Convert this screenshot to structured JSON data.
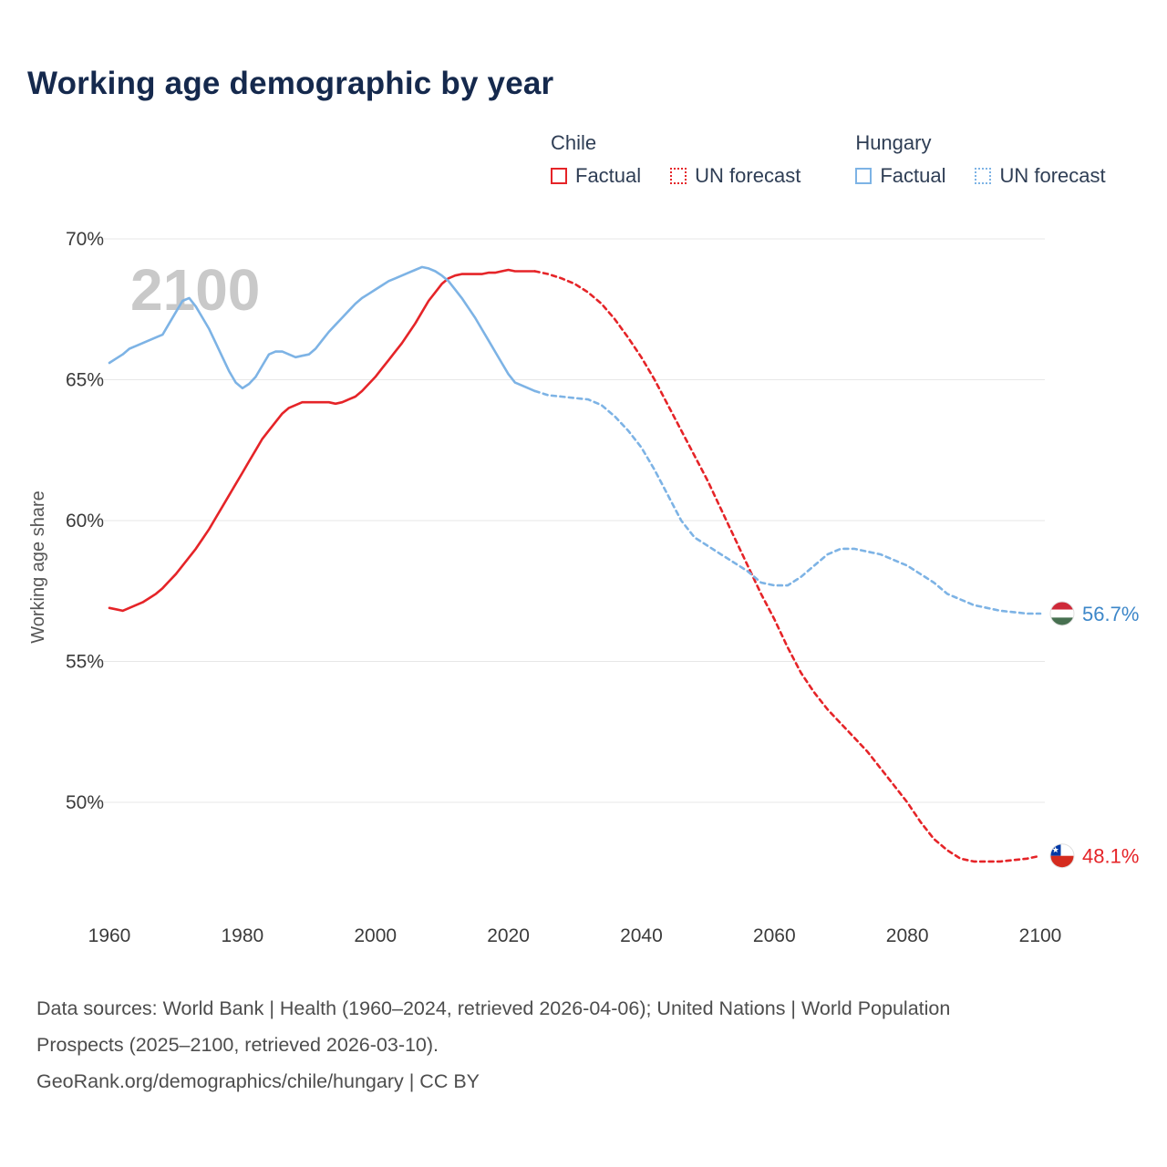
{
  "title": "Working age demographic by year",
  "watermark": "2100",
  "legend": {
    "groups": [
      {
        "country": "Chile",
        "color_key": "chile",
        "items": [
          {
            "label": "Factual",
            "style": "solid"
          },
          {
            "label": "UN forecast",
            "style": "dotted"
          }
        ]
      },
      {
        "country": "Hungary",
        "color_key": "hungary",
        "items": [
          {
            "label": "Factual",
            "style": "solid"
          },
          {
            "label": "UN forecast",
            "style": "dotted"
          }
        ]
      }
    ]
  },
  "colors": {
    "chile": "#e52428",
    "hungary": "#7db3e5",
    "chile_label": "#e52428",
    "hungary_label": "#3d87c9",
    "title": "#15294d",
    "grid": "#e7e7e7",
    "axis_text": "#3b3b3b",
    "muted_text": "#555555",
    "watermark": "#c9c9c9"
  },
  "end_labels": [
    {
      "flag": "hungary",
      "value": "56.7%",
      "value_num": 56.7,
      "color": "#3d87c9"
    },
    {
      "flag": "chile",
      "value": "48.1%",
      "value_num": 48.1,
      "color": "#e52428"
    }
  ],
  "footer": {
    "line1": "Data sources: World Bank | Health (1960–2024, retrieved 2026-04-06); United Nations | World Population Prospects (2025–2100, retrieved 2026-03-10).",
    "line2": "GeoRank.org/demographics/chile/hungary | CC BY"
  },
  "chart_data": {
    "type": "line",
    "title": "Working age demographic by year",
    "xlabel": "",
    "ylabel": "Working age share",
    "x_range": [
      1960,
      2100
    ],
    "y_range_display": [
      47,
      70.8
    ],
    "yticks": [
      50,
      55,
      60,
      65,
      70
    ],
    "xticks": [
      1960,
      1980,
      2000,
      2020,
      2040,
      2060,
      2080,
      2100
    ],
    "grid": "horizontal",
    "legend_position": "top-right",
    "series": [
      {
        "id": "chile-factual",
        "name": "Chile Factual",
        "color": "#e52428",
        "dashed": false,
        "points": [
          [
            1960,
            56.9
          ],
          [
            1961,
            56.85
          ],
          [
            1962,
            56.8
          ],
          [
            1963,
            56.9
          ],
          [
            1964,
            57.0
          ],
          [
            1965,
            57.1
          ],
          [
            1966,
            57.25
          ],
          [
            1967,
            57.4
          ],
          [
            1968,
            57.6
          ],
          [
            1969,
            57.85
          ],
          [
            1970,
            58.1
          ],
          [
            1971,
            58.4
          ],
          [
            1972,
            58.7
          ],
          [
            1973,
            59.0
          ],
          [
            1974,
            59.35
          ],
          [
            1975,
            59.7
          ],
          [
            1976,
            60.1
          ],
          [
            1977,
            60.5
          ],
          [
            1978,
            60.9
          ],
          [
            1979,
            61.3
          ],
          [
            1980,
            61.7
          ],
          [
            1981,
            62.1
          ],
          [
            1982,
            62.5
          ],
          [
            1983,
            62.9
          ],
          [
            1984,
            63.2
          ],
          [
            1985,
            63.5
          ],
          [
            1986,
            63.8
          ],
          [
            1987,
            64.0
          ],
          [
            1988,
            64.1
          ],
          [
            1989,
            64.2
          ],
          [
            1990,
            64.2
          ],
          [
            1991,
            64.2
          ],
          [
            1992,
            64.2
          ],
          [
            1993,
            64.2
          ],
          [
            1994,
            64.15
          ],
          [
            1995,
            64.2
          ],
          [
            1996,
            64.3
          ],
          [
            1997,
            64.4
          ],
          [
            1998,
            64.6
          ],
          [
            1999,
            64.85
          ],
          [
            2000,
            65.1
          ],
          [
            2001,
            65.4
          ],
          [
            2002,
            65.7
          ],
          [
            2003,
            66.0
          ],
          [
            2004,
            66.3
          ],
          [
            2005,
            66.65
          ],
          [
            2006,
            67.0
          ],
          [
            2007,
            67.4
          ],
          [
            2008,
            67.8
          ],
          [
            2009,
            68.1
          ],
          [
            2010,
            68.4
          ],
          [
            2011,
            68.6
          ],
          [
            2012,
            68.7
          ],
          [
            2013,
            68.75
          ],
          [
            2014,
            68.75
          ],
          [
            2015,
            68.75
          ],
          [
            2016,
            68.75
          ],
          [
            2017,
            68.8
          ],
          [
            2018,
            68.8
          ],
          [
            2019,
            68.85
          ],
          [
            2020,
            68.9
          ],
          [
            2021,
            68.85
          ],
          [
            2022,
            68.85
          ],
          [
            2023,
            68.85
          ],
          [
            2024,
            68.85
          ]
        ]
      },
      {
        "id": "chile-forecast",
        "name": "Chile UN forecast",
        "color": "#e52428",
        "dashed": true,
        "points": [
          [
            2024,
            68.85
          ],
          [
            2026,
            68.75
          ],
          [
            2028,
            68.6
          ],
          [
            2030,
            68.4
          ],
          [
            2032,
            68.1
          ],
          [
            2034,
            67.7
          ],
          [
            2036,
            67.15
          ],
          [
            2038,
            66.5
          ],
          [
            2040,
            65.8
          ],
          [
            2042,
            65.0
          ],
          [
            2044,
            64.1
          ],
          [
            2046,
            63.2
          ],
          [
            2048,
            62.3
          ],
          [
            2050,
            61.4
          ],
          [
            2052,
            60.4
          ],
          [
            2054,
            59.4
          ],
          [
            2056,
            58.4
          ],
          [
            2058,
            57.4
          ],
          [
            2060,
            56.5
          ],
          [
            2062,
            55.5
          ],
          [
            2064,
            54.6
          ],
          [
            2066,
            53.9
          ],
          [
            2068,
            53.3
          ],
          [
            2070,
            52.8
          ],
          [
            2072,
            52.3
          ],
          [
            2074,
            51.8
          ],
          [
            2076,
            51.2
          ],
          [
            2078,
            50.6
          ],
          [
            2080,
            50.0
          ],
          [
            2082,
            49.3
          ],
          [
            2084,
            48.7
          ],
          [
            2086,
            48.3
          ],
          [
            2088,
            48.0
          ],
          [
            2090,
            47.9
          ],
          [
            2092,
            47.9
          ],
          [
            2094,
            47.9
          ],
          [
            2096,
            47.95
          ],
          [
            2098,
            48.0
          ],
          [
            2100,
            48.1
          ]
        ]
      },
      {
        "id": "hungary-factual",
        "name": "Hungary Factual",
        "color": "#7db3e5",
        "dashed": false,
        "points": [
          [
            1960,
            65.6
          ],
          [
            1961,
            65.75
          ],
          [
            1962,
            65.9
          ],
          [
            1963,
            66.1
          ],
          [
            1964,
            66.2
          ],
          [
            1965,
            66.3
          ],
          [
            1966,
            66.4
          ],
          [
            1967,
            66.5
          ],
          [
            1968,
            66.6
          ],
          [
            1969,
            67.0
          ],
          [
            1970,
            67.4
          ],
          [
            1971,
            67.8
          ],
          [
            1972,
            67.9
          ],
          [
            1973,
            67.6
          ],
          [
            1974,
            67.2
          ],
          [
            1975,
            66.8
          ],
          [
            1976,
            66.3
          ],
          [
            1977,
            65.8
          ],
          [
            1978,
            65.3
          ],
          [
            1979,
            64.9
          ],
          [
            1980,
            64.7
          ],
          [
            1981,
            64.85
          ],
          [
            1982,
            65.1
          ],
          [
            1983,
            65.5
          ],
          [
            1984,
            65.9
          ],
          [
            1985,
            66.0
          ],
          [
            1986,
            66.0
          ],
          [
            1987,
            65.9
          ],
          [
            1988,
            65.8
          ],
          [
            1989,
            65.85
          ],
          [
            1990,
            65.9
          ],
          [
            1991,
            66.1
          ],
          [
            1992,
            66.4
          ],
          [
            1993,
            66.7
          ],
          [
            1994,
            66.95
          ],
          [
            1995,
            67.2
          ],
          [
            1996,
            67.45
          ],
          [
            1997,
            67.7
          ],
          [
            1998,
            67.9
          ],
          [
            1999,
            68.05
          ],
          [
            2000,
            68.2
          ],
          [
            2001,
            68.35
          ],
          [
            2002,
            68.5
          ],
          [
            2003,
            68.6
          ],
          [
            2004,
            68.7
          ],
          [
            2005,
            68.8
          ],
          [
            2006,
            68.9
          ],
          [
            2007,
            69.0
          ],
          [
            2008,
            68.95
          ],
          [
            2009,
            68.85
          ],
          [
            2010,
            68.7
          ],
          [
            2011,
            68.5
          ],
          [
            2012,
            68.2
          ],
          [
            2013,
            67.9
          ],
          [
            2014,
            67.55
          ],
          [
            2015,
            67.2
          ],
          [
            2016,
            66.8
          ],
          [
            2017,
            66.4
          ],
          [
            2018,
            66.0
          ],
          [
            2019,
            65.6
          ],
          [
            2020,
            65.2
          ],
          [
            2021,
            64.9
          ],
          [
            2022,
            64.8
          ],
          [
            2023,
            64.7
          ],
          [
            2024,
            64.6
          ]
        ]
      },
      {
        "id": "hungary-forecast",
        "name": "Hungary UN forecast",
        "color": "#7db3e5",
        "dashed": true,
        "points": [
          [
            2024,
            64.6
          ],
          [
            2026,
            64.45
          ],
          [
            2028,
            64.4
          ],
          [
            2030,
            64.35
          ],
          [
            2032,
            64.3
          ],
          [
            2034,
            64.1
          ],
          [
            2036,
            63.7
          ],
          [
            2038,
            63.2
          ],
          [
            2040,
            62.6
          ],
          [
            2042,
            61.8
          ],
          [
            2044,
            60.9
          ],
          [
            2046,
            60.0
          ],
          [
            2048,
            59.4
          ],
          [
            2050,
            59.1
          ],
          [
            2052,
            58.8
          ],
          [
            2054,
            58.5
          ],
          [
            2056,
            58.2
          ],
          [
            2058,
            57.8
          ],
          [
            2060,
            57.7
          ],
          [
            2062,
            57.7
          ],
          [
            2064,
            58.0
          ],
          [
            2066,
            58.4
          ],
          [
            2068,
            58.8
          ],
          [
            2070,
            59.0
          ],
          [
            2072,
            59.0
          ],
          [
            2074,
            58.9
          ],
          [
            2076,
            58.8
          ],
          [
            2078,
            58.6
          ],
          [
            2080,
            58.4
          ],
          [
            2082,
            58.1
          ],
          [
            2084,
            57.8
          ],
          [
            2086,
            57.4
          ],
          [
            2088,
            57.2
          ],
          [
            2090,
            57.0
          ],
          [
            2092,
            56.9
          ],
          [
            2094,
            56.8
          ],
          [
            2096,
            56.75
          ],
          [
            2098,
            56.7
          ],
          [
            2100,
            56.7
          ]
        ]
      }
    ]
  }
}
